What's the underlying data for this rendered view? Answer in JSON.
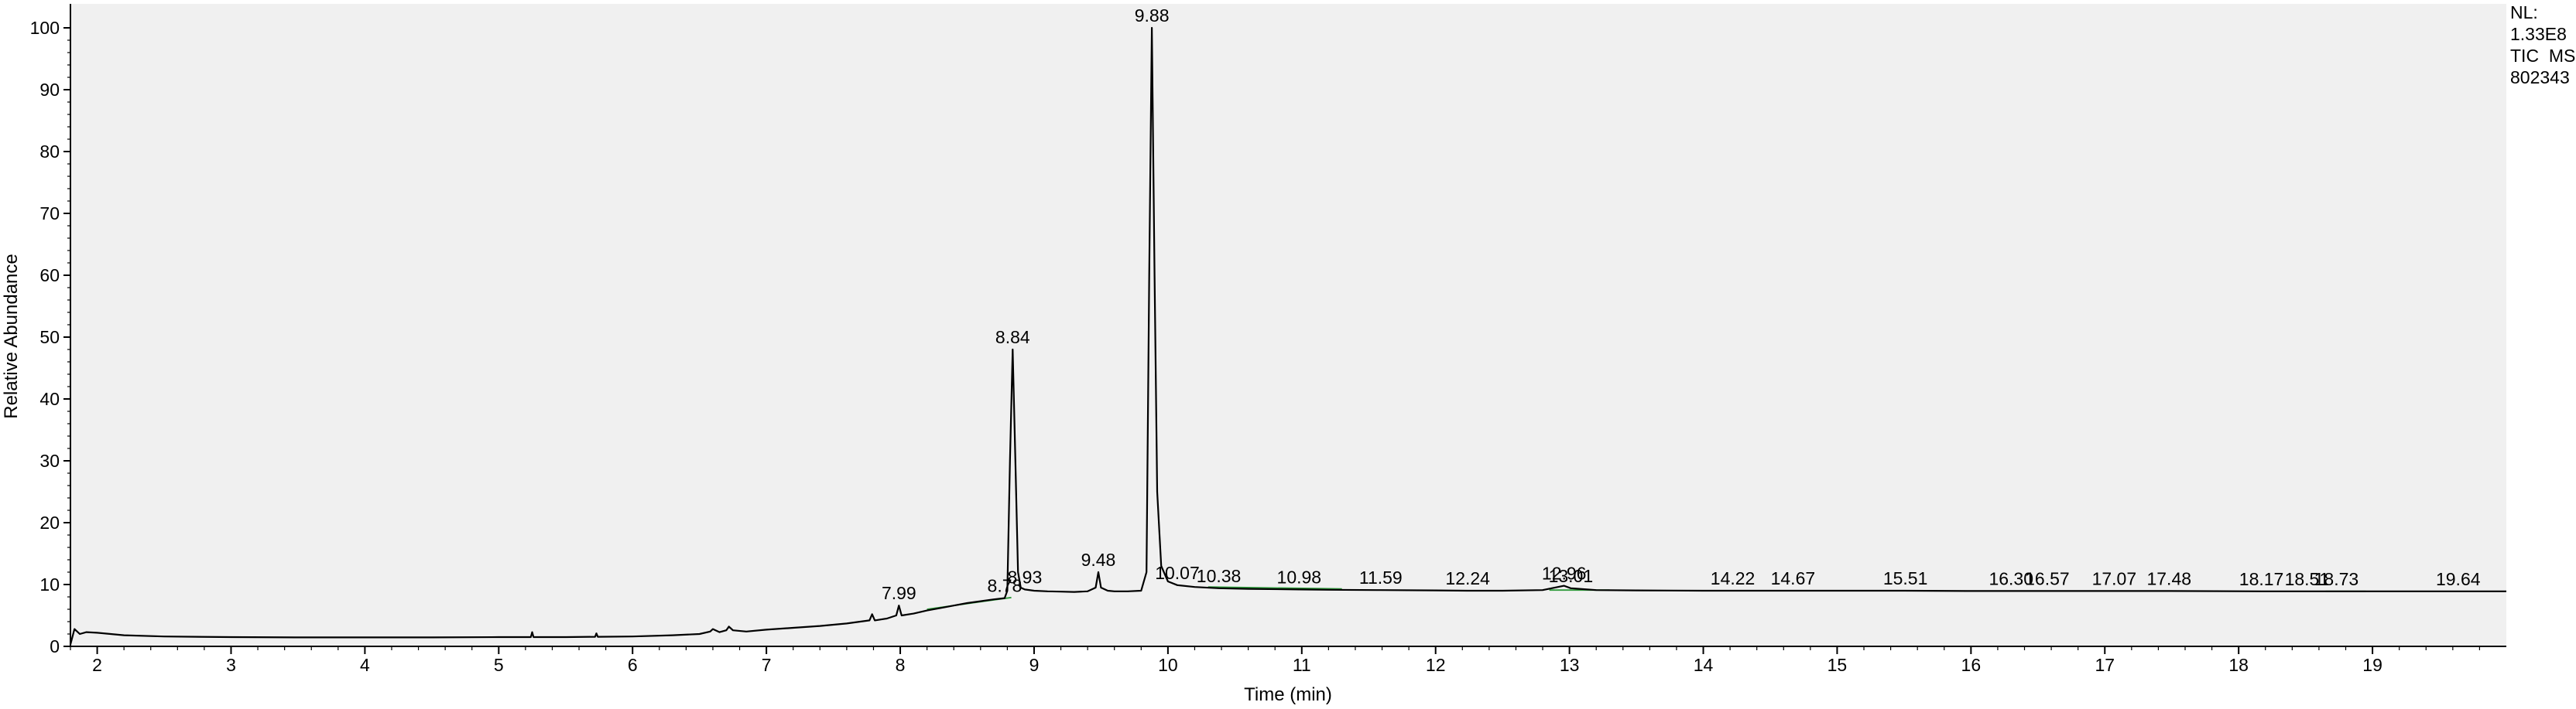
{
  "header": {
    "nl_label": "NL:",
    "nl_value": "1.33E8",
    "trace_label": "TIC  MS",
    "file_id": "802343"
  },
  "chart_data": {
    "type": "line",
    "title": "",
    "xlabel": "Time (min)",
    "ylabel": "Relative Abundance",
    "xlim": [
      1.8,
      20.0
    ],
    "ylim": [
      0,
      100
    ],
    "xticks": [
      2,
      3,
      4,
      5,
      6,
      7,
      8,
      9,
      10,
      11,
      12,
      13,
      14,
      15,
      16,
      17,
      18,
      19
    ],
    "yticks": [
      0,
      10,
      20,
      30,
      40,
      50,
      60,
      70,
      80,
      90,
      100
    ],
    "grid": false,
    "legend": "none",
    "series": [
      {
        "color": "#000000",
        "x": [
          1.8,
          1.83,
          1.87,
          1.92,
          2.0,
          2.2,
          2.5,
          3.0,
          3.5,
          4.0,
          4.5,
          5.0,
          5.24,
          5.25,
          5.26,
          5.5,
          5.72,
          5.73,
          5.74,
          6.0,
          6.3,
          6.5,
          6.58,
          6.6,
          6.65,
          6.7,
          6.72,
          6.75,
          6.85,
          7.0,
          7.2,
          7.4,
          7.6,
          7.77,
          7.79,
          7.81,
          7.9,
          7.97,
          7.99,
          8.01,
          8.1,
          8.2,
          8.3,
          8.4,
          8.5,
          8.6,
          8.7,
          8.78,
          8.8,
          8.82,
          8.84,
          8.86,
          8.88,
          8.9,
          8.93,
          9.0,
          9.1,
          9.2,
          9.3,
          9.4,
          9.46,
          9.48,
          9.5,
          9.55,
          9.6,
          9.7,
          9.8,
          9.84,
          9.86,
          9.88,
          9.9,
          9.92,
          9.95,
          10.0,
          10.07,
          10.2,
          10.38,
          10.6,
          10.98,
          11.2,
          11.59,
          12.0,
          12.24,
          12.5,
          12.8,
          12.96,
          13.01,
          13.2,
          13.5,
          14.0,
          14.22,
          14.67,
          15.0,
          15.51,
          16.0,
          16.3,
          16.57,
          17.07,
          17.48,
          18.17,
          18.51,
          18.73,
          19.2,
          19.64,
          20.0
        ],
        "values": [
          0.3,
          2.8,
          2.0,
          2.3,
          2.2,
          1.8,
          1.6,
          1.5,
          1.45,
          1.45,
          1.45,
          1.5,
          1.5,
          2.3,
          1.5,
          1.5,
          1.55,
          2.1,
          1.55,
          1.6,
          1.8,
          2.0,
          2.4,
          2.8,
          2.3,
          2.6,
          3.2,
          2.6,
          2.4,
          2.7,
          3.0,
          3.3,
          3.7,
          4.2,
          5.2,
          4.2,
          4.5,
          5.0,
          6.6,
          5.0,
          5.3,
          5.8,
          6.2,
          6.6,
          7.0,
          7.3,
          7.6,
          7.8,
          9.0,
          30.0,
          48.0,
          30.0,
          12.0,
          9.5,
          9.2,
          9.0,
          8.9,
          8.85,
          8.8,
          8.9,
          9.5,
          12.0,
          9.5,
          9.0,
          8.9,
          8.9,
          9.0,
          12.0,
          60.0,
          100.0,
          60.0,
          25.0,
          13.0,
          10.5,
          9.9,
          9.6,
          9.4,
          9.3,
          9.2,
          9.15,
          9.1,
          9.05,
          9.0,
          9.0,
          9.1,
          9.8,
          9.4,
          9.1,
          9.05,
          9.0,
          9.0,
          9.0,
          9.0,
          9.0,
          8.95,
          8.95,
          8.95,
          8.95,
          8.95,
          8.9,
          8.9,
          8.9,
          8.9,
          8.9,
          8.9
        ]
      }
    ],
    "peak_labels": [
      {
        "x": 7.99,
        "y": 6.6,
        "text": "7.99"
      },
      {
        "x": 8.78,
        "y": 7.8,
        "text": "8.78"
      },
      {
        "x": 8.84,
        "y": 48.0,
        "text": "8.84"
      },
      {
        "x": 8.93,
        "y": 9.2,
        "text": "8.93"
      },
      {
        "x": 9.48,
        "y": 12.0,
        "text": "9.48"
      },
      {
        "x": 9.88,
        "y": 100.0,
        "text": "9.88"
      },
      {
        "x": 10.07,
        "y": 9.9,
        "text": "10.07"
      },
      {
        "x": 10.38,
        "y": 9.4,
        "text": "10.38"
      },
      {
        "x": 10.98,
        "y": 9.2,
        "text": "10.98"
      },
      {
        "x": 11.59,
        "y": 9.1,
        "text": "11.59"
      },
      {
        "x": 12.24,
        "y": 9.0,
        "text": "12.24"
      },
      {
        "x": 12.96,
        "y": 9.8,
        "text": "12.96"
      },
      {
        "x": 13.01,
        "y": 9.4,
        "text": "13.01"
      },
      {
        "x": 14.22,
        "y": 9.0,
        "text": "14.22"
      },
      {
        "x": 14.67,
        "y": 9.0,
        "text": "14.67"
      },
      {
        "x": 15.51,
        "y": 9.0,
        "text": "15.51"
      },
      {
        "x": 16.3,
        "y": 8.95,
        "text": "16.30"
      },
      {
        "x": 16.57,
        "y": 8.95,
        "text": "16.57"
      },
      {
        "x": 17.07,
        "y": 8.95,
        "text": "17.07"
      },
      {
        "x": 17.48,
        "y": 8.95,
        "text": "17.48"
      },
      {
        "x": 18.17,
        "y": 8.9,
        "text": "18.17"
      },
      {
        "x": 18.51,
        "y": 8.9,
        "text": "18.51"
      },
      {
        "x": 18.73,
        "y": 8.9,
        "text": "18.73"
      },
      {
        "x": 19.64,
        "y": 8.9,
        "text": "19.64"
      }
    ],
    "baseline_color": "#2e9a3a",
    "line_color": "#000000",
    "plot_background": "#f0f0f0"
  }
}
